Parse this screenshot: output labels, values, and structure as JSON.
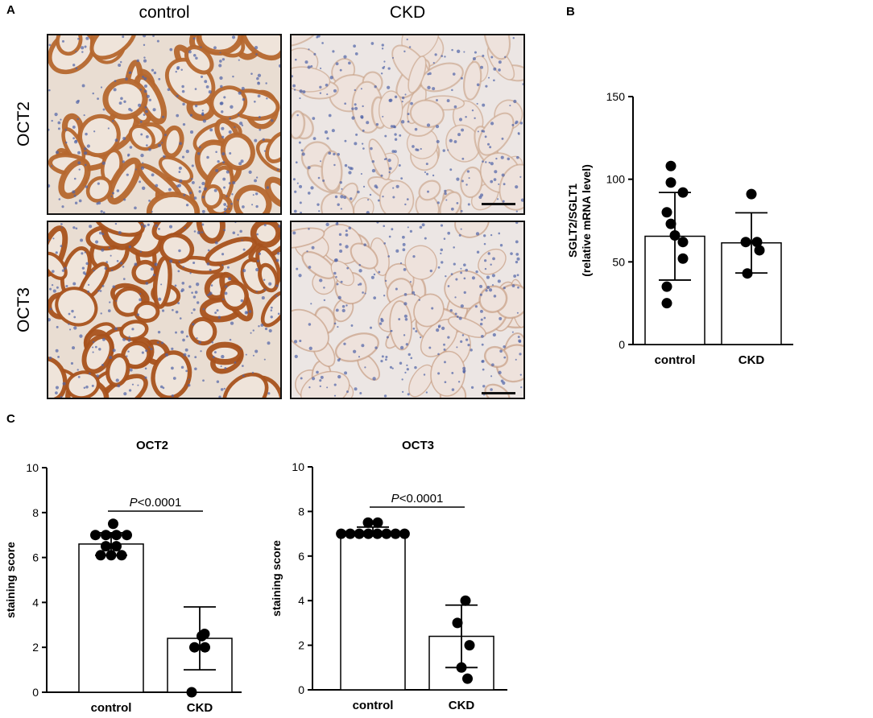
{
  "panel_labels": {
    "a": "A",
    "b": "B",
    "c": "C"
  },
  "panel_a": {
    "columns": [
      "control",
      "CKD"
    ],
    "rows": [
      "OCT2",
      "OCT3"
    ],
    "images": [
      {
        "name": "micrograph-oct2-control",
        "stain": "strong",
        "color": "#b5672e"
      },
      {
        "name": "micrograph-oct2-ckd",
        "stain": "weak",
        "color": "#c9a58a"
      },
      {
        "name": "micrograph-oct3-control",
        "stain": "strong",
        "color": "#a8521c"
      },
      {
        "name": "micrograph-oct3-ckd",
        "stain": "weak",
        "color": "#c49a7e"
      }
    ]
  },
  "chart_data": [
    {
      "id": "b",
      "type": "bar",
      "title": "",
      "ylabel_lines": [
        "SGLT2/SGLT1",
        "(relative mRNA level)"
      ],
      "categories": [
        "control",
        "CKD"
      ],
      "values": [
        65.5,
        61.5
      ],
      "sd": [
        26.5,
        18.2
      ],
      "ylim": [
        0,
        150
      ],
      "yticks": [
        "0",
        "50",
        "100",
        "150"
      ],
      "points": [
        [
          108,
          98,
          92,
          80,
          73,
          66,
          62,
          52,
          35,
          25
        ],
        [
          91,
          62,
          62,
          57,
          43
        ]
      ]
    },
    {
      "id": "c1",
      "type": "bar",
      "title": "OCT2",
      "ylabel": "staining score",
      "categories": [
        "control",
        "CKD"
      ],
      "values": [
        6.6,
        2.4
      ],
      "sd": [
        0.5,
        1.4
      ],
      "ylim": [
        0,
        10
      ],
      "yticks": [
        "0",
        "2",
        "4",
        "6",
        "8",
        "10"
      ],
      "points": [
        [
          7.5,
          7.0,
          7.0,
          7.0,
          7.0,
          6.5,
          6.5,
          6.1,
          6.1,
          6.1
        ],
        [
          2.6,
          2.5,
          2.0,
          2.0,
          0.0
        ]
      ],
      "annotation_p": "P",
      "annotation_rest": "<0.0001"
    },
    {
      "id": "c2",
      "type": "bar",
      "title": "OCT3",
      "ylabel": "staining score",
      "categories": [
        "control",
        "CKD"
      ],
      "values": [
        7.1,
        2.4
      ],
      "sd": [
        0.2,
        1.4
      ],
      "ylim": [
        0,
        10
      ],
      "yticks": [
        "0",
        "2",
        "4",
        "6",
        "8",
        "10"
      ],
      "points": [
        [
          7.5,
          7.5,
          7.0,
          7.0,
          7.0,
          7.0,
          7.0,
          7.0,
          7.0,
          7.0
        ],
        [
          4.0,
          3.0,
          2.0,
          1.0,
          0.5
        ]
      ],
      "annotation_p": "P",
      "annotation_rest": "<0.0001"
    }
  ]
}
